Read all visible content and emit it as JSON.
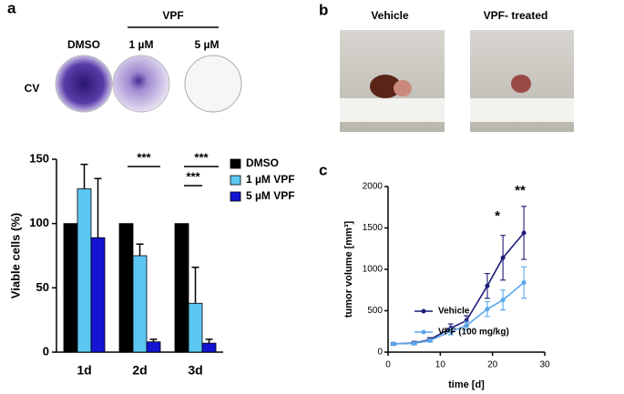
{
  "panel_labels": [
    "a",
    "b",
    "c"
  ],
  "panel_a": {
    "group_label": "VPF",
    "columns": [
      "DMSO",
      "1 µM",
      "5 µM"
    ],
    "row_label": "CV"
  },
  "panel_b": {
    "columns": [
      "Vehicle",
      "VPF- treated"
    ]
  },
  "chart_data": [
    {
      "type": "bar",
      "ylabel": "Viable cells (%)",
      "categories": [
        "1d",
        "2d",
        "3d"
      ],
      "series": [
        {
          "name": "DMSO",
          "color": "#000000",
          "values": [
            100,
            100,
            100
          ]
        },
        {
          "name": "1 µM VPF",
          "color": "#5cc6f2",
          "values": [
            127,
            75,
            38
          ],
          "errors": [
            19,
            9,
            28
          ]
        },
        {
          "name": "5 µM VPF",
          "color": "#1414d2",
          "values": [
            89,
            8,
            7
          ],
          "errors": [
            46,
            2,
            3
          ]
        }
      ],
      "ylim": [
        0,
        150
      ],
      "yticks": [
        0,
        50,
        100,
        150
      ],
      "annotations": [
        "***",
        "***",
        "***"
      ]
    },
    {
      "type": "line",
      "xlabel": "time [d]",
      "ylabel": "tumor volume [mm³]",
      "x": [
        1,
        5,
        8,
        12,
        15,
        19,
        22,
        26
      ],
      "series": [
        {
          "name": "Vehicle",
          "color": "#1c1c78",
          "values": [
            100,
            110,
            150,
            290,
            380,
            800,
            1140,
            1440
          ],
          "errors": [
            15,
            20,
            25,
            50,
            60,
            150,
            270,
            320
          ]
        },
        {
          "name": "VPF (100 mg/kg)",
          "color": "#5aa6ee",
          "values": [
            100,
            105,
            140,
            250,
            320,
            520,
            630,
            840
          ],
          "errors": [
            10,
            15,
            20,
            40,
            50,
            90,
            120,
            190
          ]
        }
      ],
      "xlim": [
        0,
        30
      ],
      "xticks": [
        0,
        10,
        20,
        30
      ],
      "ylim": [
        0,
        2000
      ],
      "yticks": [
        0,
        500,
        1000,
        1500,
        2000
      ],
      "annotations": [
        "*",
        "**"
      ]
    }
  ]
}
